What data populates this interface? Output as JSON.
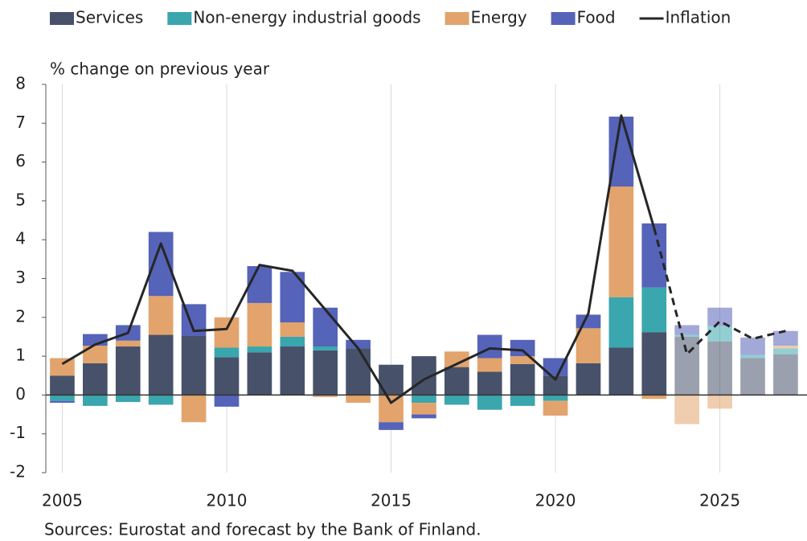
{
  "chart_data": {
    "type": "bar",
    "stacked": true,
    "y_axis_label": "% change on previous year",
    "source": "Sources: Eurostat and forecast by the Bank of Finland.",
    "x": [
      2005,
      2006,
      2007,
      2008,
      2009,
      2010,
      2011,
      2012,
      2013,
      2014,
      2015,
      2016,
      2017,
      2018,
      2019,
      2020,
      2021,
      2022,
      2023,
      2024,
      2025,
      2026,
      2027
    ],
    "series": [
      {
        "name": "Services",
        "color": "#47526a",
        "values": [
          0.5,
          0.82,
          1.25,
          1.55,
          1.52,
          0.97,
          1.1,
          1.25,
          1.15,
          1.2,
          0.78,
          1.0,
          0.72,
          0.6,
          0.8,
          0.5,
          0.82,
          1.22,
          1.62,
          1.5,
          1.38,
          0.95,
          1.05
        ]
      },
      {
        "name": "Non-energy industrial goods",
        "color": "#3aa6ae",
        "values": [
          -0.15,
          -0.28,
          -0.18,
          -0.25,
          0,
          0.25,
          0.15,
          0.25,
          0.1,
          0,
          0,
          -0.2,
          -0.25,
          -0.38,
          -0.28,
          -0.15,
          0,
          1.3,
          1.15,
          0.05,
          0.4,
          0.08,
          0.15
        ]
      },
      {
        "name": "Energy",
        "color": "#e2a46c",
        "values": [
          0.45,
          0.45,
          0.15,
          1.0,
          -0.7,
          0.78,
          1.12,
          0.37,
          -0.05,
          -0.2,
          -0.7,
          -0.3,
          0.4,
          0.35,
          0.2,
          -0.38,
          0.9,
          2.85,
          -0.1,
          -0.75,
          -0.35,
          0,
          0.07
        ]
      },
      {
        "name": "Food",
        "color": "#5563b8",
        "values": [
          -0.05,
          0.3,
          0.4,
          1.65,
          0.82,
          -0.3,
          0.95,
          1.3,
          1.0,
          0.22,
          -0.2,
          -0.1,
          0,
          0.6,
          0.42,
          0.45,
          0.35,
          1.8,
          1.65,
          0.25,
          0.47,
          0.45,
          0.38
        ]
      }
    ],
    "line": {
      "name": "Inflation",
      "color": "#262626",
      "values": [
        0.8,
        1.3,
        1.6,
        3.9,
        1.65,
        1.7,
        3.35,
        3.2,
        2.2,
        1.2,
        -0.2,
        0.4,
        0.8,
        1.2,
        1.15,
        0.4,
        2.1,
        7.2,
        4.3,
        1.05,
        1.9,
        1.45,
        1.65
      ]
    },
    "forecast_from": 2024,
    "xlim": [
      2004.5,
      2027.65
    ],
    "ylim": [
      -2,
      8
    ],
    "xticks": [
      2005,
      2010,
      2015,
      2020,
      2025
    ],
    "yticks": [
      -2,
      -1,
      0,
      1,
      2,
      3,
      4,
      5,
      6,
      7,
      8
    ],
    "grid": "x",
    "legend": "top"
  }
}
